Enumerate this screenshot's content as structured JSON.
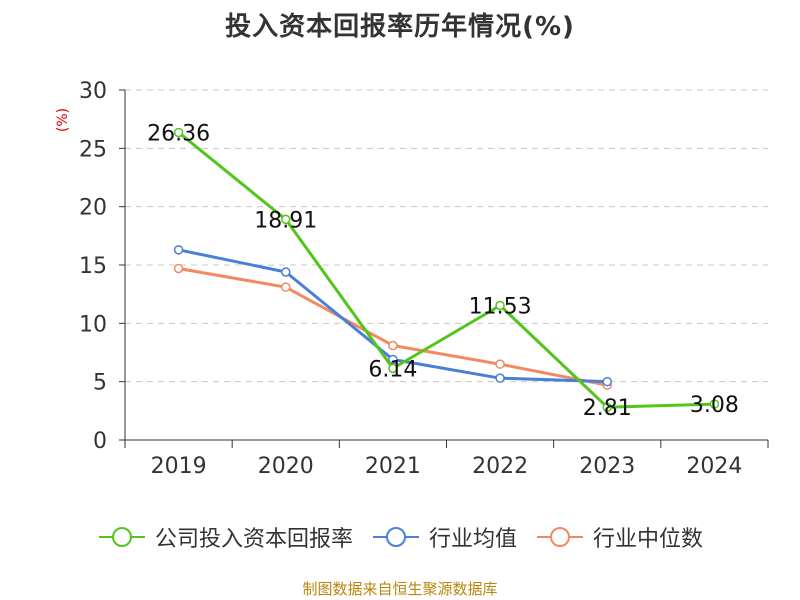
{
  "chart_data": {
    "type": "line",
    "title": "投入资本回报率历年情况(%)",
    "ylabel": "(%)",
    "categories": [
      "2019",
      "2020",
      "2021",
      "2022",
      "2023",
      "2024"
    ],
    "ylim": [
      0,
      30
    ],
    "yticks": [
      0,
      5,
      10,
      15,
      20,
      25,
      30
    ],
    "grid": true,
    "legend_position": "bottom",
    "series": [
      {
        "name": "公司投入资本回报率",
        "color": "#52c41a",
        "values": [
          26.36,
          18.91,
          6.14,
          11.53,
          2.81,
          3.08
        ],
        "labels": [
          "26.36",
          "18.91",
          "6.14",
          "11.53",
          "2.81",
          "3.08"
        ]
      },
      {
        "name": "行业均值",
        "color": "#4a7fd9",
        "values": [
          16.3,
          14.4,
          6.9,
          5.3,
          5.0,
          null
        ]
      },
      {
        "name": "行业中位数",
        "color": "#f4895f",
        "values": [
          14.7,
          13.1,
          8.1,
          6.5,
          4.7,
          null
        ]
      }
    ]
  },
  "source": "制图数据来自恒生聚源数据库"
}
